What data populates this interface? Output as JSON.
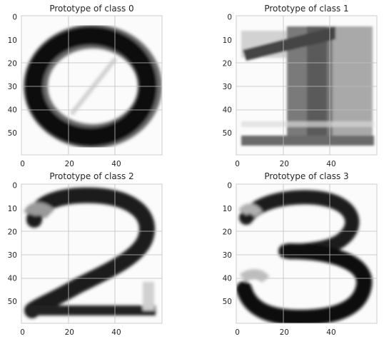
{
  "chart_data": [
    {
      "type": "heatmap",
      "title": "Prototype of class 0",
      "digit": "0",
      "colormap": "gray_r",
      "image_shape": [
        60,
        60
      ],
      "xlim": [
        0,
        59
      ],
      "ylim": [
        59,
        0
      ],
      "xticks": [
        0,
        20,
        40
      ],
      "yticks": [
        0,
        10,
        20,
        30,
        40,
        50
      ],
      "grid": true
    },
    {
      "type": "heatmap",
      "title": "Prototype of class 1",
      "digit": "1",
      "colormap": "gray_r",
      "image_shape": [
        60,
        60
      ],
      "xlim": [
        0,
        59
      ],
      "ylim": [
        59,
        0
      ],
      "xticks": [
        0,
        20,
        40
      ],
      "yticks": [
        0,
        10,
        20,
        30,
        40,
        50
      ],
      "grid": true
    },
    {
      "type": "heatmap",
      "title": "Prototype of class 2",
      "digit": "2",
      "colormap": "gray_r",
      "image_shape": [
        60,
        60
      ],
      "xlim": [
        0,
        59
      ],
      "ylim": [
        59,
        0
      ],
      "xticks": [
        0,
        20,
        40
      ],
      "yticks": [
        0,
        10,
        20,
        30,
        40,
        50
      ],
      "grid": true
    },
    {
      "type": "heatmap",
      "title": "Prototype of class 3",
      "digit": "3",
      "colormap": "gray_r",
      "image_shape": [
        60,
        60
      ],
      "xlim": [
        0,
        59
      ],
      "ylim": [
        59,
        0
      ],
      "xticks": [
        0,
        20,
        40
      ],
      "yticks": [
        0,
        10,
        20,
        30,
        40,
        50
      ],
      "grid": true
    }
  ]
}
